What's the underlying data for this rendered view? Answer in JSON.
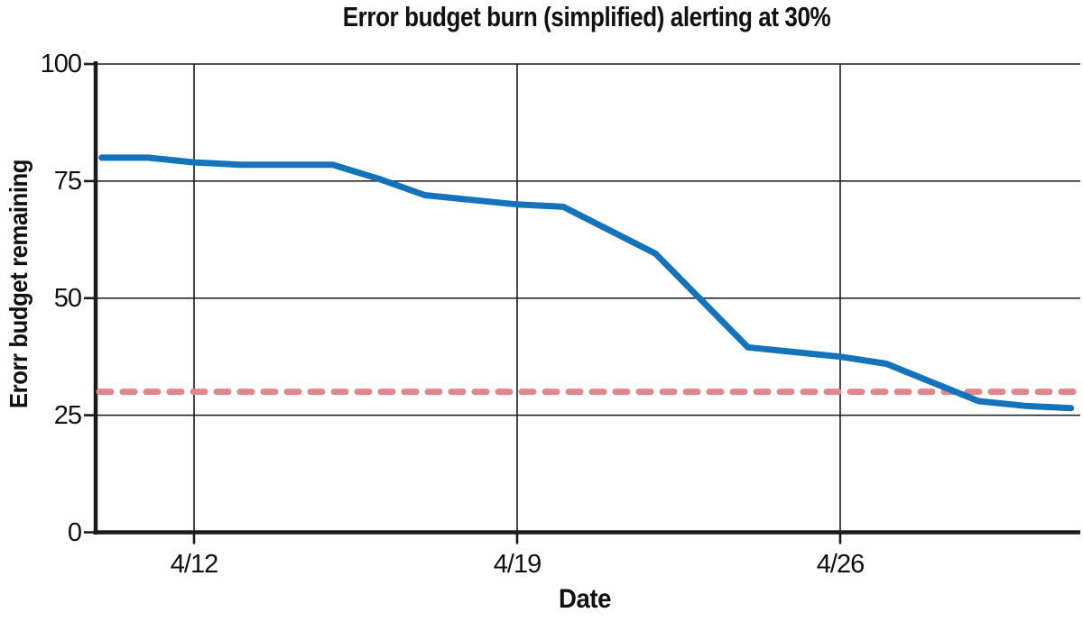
{
  "chart_data": {
    "type": "line",
    "title": "Error budget burn (simplified) alerting at 30%",
    "xlabel": "Date",
    "ylabel": "Erorr budget remaining",
    "x": [
      "4/10",
      "4/11",
      "4/12",
      "4/13",
      "4/14",
      "4/15",
      "4/16",
      "4/17",
      "4/18",
      "4/19",
      "4/20",
      "4/21",
      "4/22",
      "4/23",
      "4/24",
      "4/25",
      "4/26",
      "4/27",
      "4/28",
      "4/29",
      "4/30",
      "5/1"
    ],
    "values": [
      80,
      80,
      79,
      78.5,
      78.5,
      78.5,
      75.5,
      72,
      71,
      70,
      69.5,
      64.5,
      59.5,
      49.5,
      39.5,
      38.5,
      37.5,
      36,
      32,
      28,
      27,
      26.5
    ],
    "threshold": 30,
    "ylim": [
      0,
      100
    ],
    "yticks": [
      0,
      25,
      50,
      75,
      100
    ],
    "ytick_labels": [
      "0",
      "25",
      "50",
      "75",
      "100"
    ],
    "xtick_labels": [
      "4/12",
      "4/19",
      "4/26"
    ],
    "grid": "on",
    "legend": "none",
    "colors": {
      "series_line": "#1573bb",
      "threshold_line": "#e0878e",
      "axis": "#1a1a1a",
      "grid_line": "#1a1a1a",
      "background": "#ffffff"
    }
  }
}
